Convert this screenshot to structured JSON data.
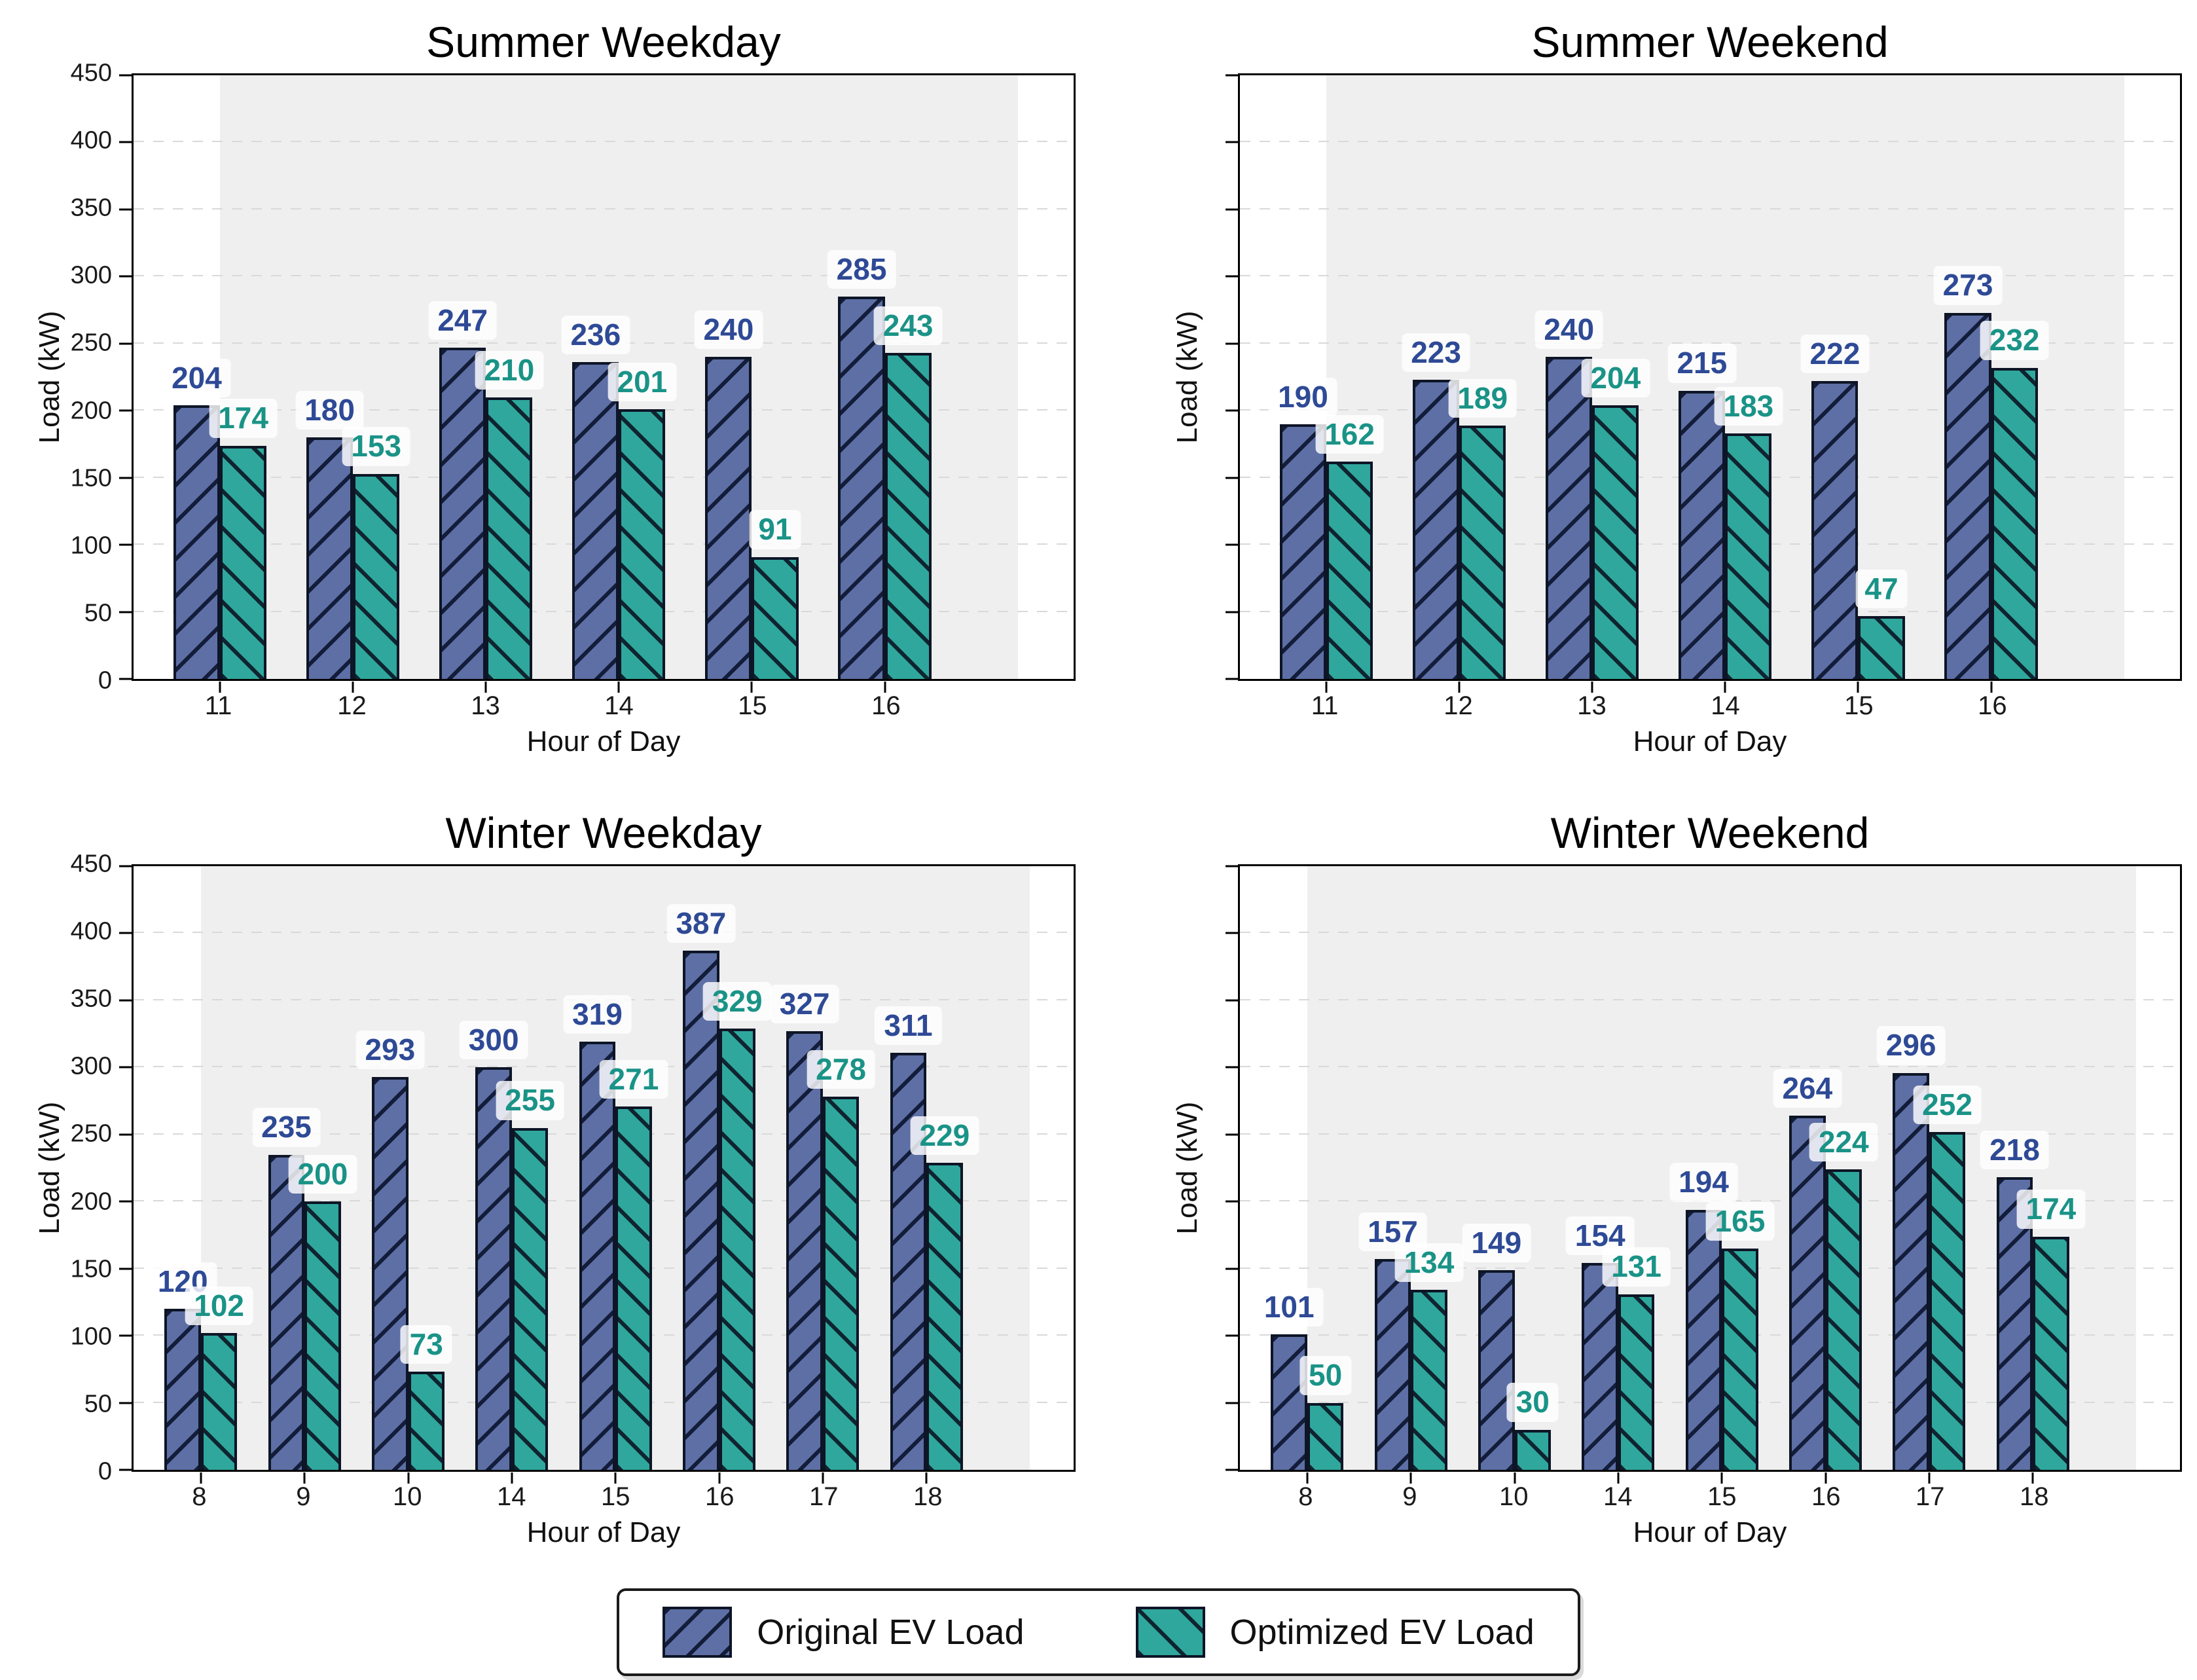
{
  "page": {
    "background": "#ffffff"
  },
  "colors": {
    "original_fill": "#5d6fa5",
    "optimized_fill": "#2fa79c",
    "bar_edge": "#0d1526",
    "original_value_text": "#2e4a96",
    "optimized_value_text": "#1a9387",
    "shaded_band": "#efefef",
    "gridline": "#d9d9d9",
    "spine": "#000000",
    "value_label_box": "rgba(255,255,255,0.82)"
  },
  "legend": {
    "items": [
      {
        "label": "Original EV Load",
        "series": "original",
        "hatch": "/"
      },
      {
        "label": "Optimized EV Load",
        "series": "optimized",
        "hatch": "\\"
      }
    ]
  },
  "chart_data": [
    {
      "type": "bar",
      "title": "Summer Weekday",
      "xlabel": "Hour of Day",
      "ylabel": "Load (kW)",
      "ylim": [
        0,
        450
      ],
      "ytick_step": 50,
      "show_ytick_labels": true,
      "grid": "dashed-horizontal",
      "shaded_band_span": [
        0,
        6
      ],
      "categories": [
        "11",
        "12",
        "13",
        "14",
        "15",
        "16"
      ],
      "series": [
        {
          "name": "Original EV Load",
          "values": [
            204,
            180,
            247,
            236,
            240,
            285
          ]
        },
        {
          "name": "Optimized EV Load",
          "values": [
            174,
            153,
            210,
            201,
            91,
            243
          ]
        }
      ]
    },
    {
      "type": "bar",
      "title": "Summer Weekend",
      "xlabel": "Hour of Day",
      "ylabel": "Load (kW)",
      "ylim": [
        0,
        450
      ],
      "ytick_step": 50,
      "show_ytick_labels": false,
      "grid": "dashed-horizontal",
      "shaded_band_span": [
        0,
        6
      ],
      "categories": [
        "11",
        "12",
        "13",
        "14",
        "15",
        "16"
      ],
      "series": [
        {
          "name": "Original EV Load",
          "values": [
            190,
            223,
            240,
            215,
            222,
            273
          ]
        },
        {
          "name": "Optimized EV Load",
          "values": [
            162,
            189,
            204,
            183,
            47,
            232
          ]
        }
      ]
    },
    {
      "type": "bar",
      "title": "Winter Weekday",
      "xlabel": "Hour of Day",
      "ylabel": "Load (kW)",
      "ylim": [
        0,
        450
      ],
      "ytick_step": 50,
      "show_ytick_labels": true,
      "grid": "dashed-horizontal",
      "shaded_band_span": [
        0,
        8
      ],
      "categories": [
        "8",
        "9",
        "10",
        "14",
        "15",
        "16",
        "17",
        "18"
      ],
      "series": [
        {
          "name": "Original EV Load",
          "values": [
            120,
            235,
            293,
            300,
            319,
            387,
            327,
            311
          ]
        },
        {
          "name": "Optimized EV Load",
          "values": [
            102,
            200,
            73,
            255,
            271,
            329,
            278,
            229
          ]
        }
      ]
    },
    {
      "type": "bar",
      "title": "Winter Weekend",
      "xlabel": "Hour of Day",
      "ylabel": "Load (kW)",
      "ylim": [
        0,
        450
      ],
      "ytick_step": 50,
      "show_ytick_labels": false,
      "grid": "dashed-horizontal",
      "shaded_band_span": [
        0,
        8
      ],
      "categories": [
        "8",
        "9",
        "10",
        "14",
        "15",
        "16",
        "17",
        "18"
      ],
      "series": [
        {
          "name": "Original EV Load",
          "values": [
            101,
            157,
            149,
            154,
            194,
            264,
            296,
            218
          ]
        },
        {
          "name": "Optimized EV Load",
          "values": [
            50,
            134,
            30,
            131,
            165,
            224,
            252,
            174
          ]
        }
      ]
    }
  ]
}
